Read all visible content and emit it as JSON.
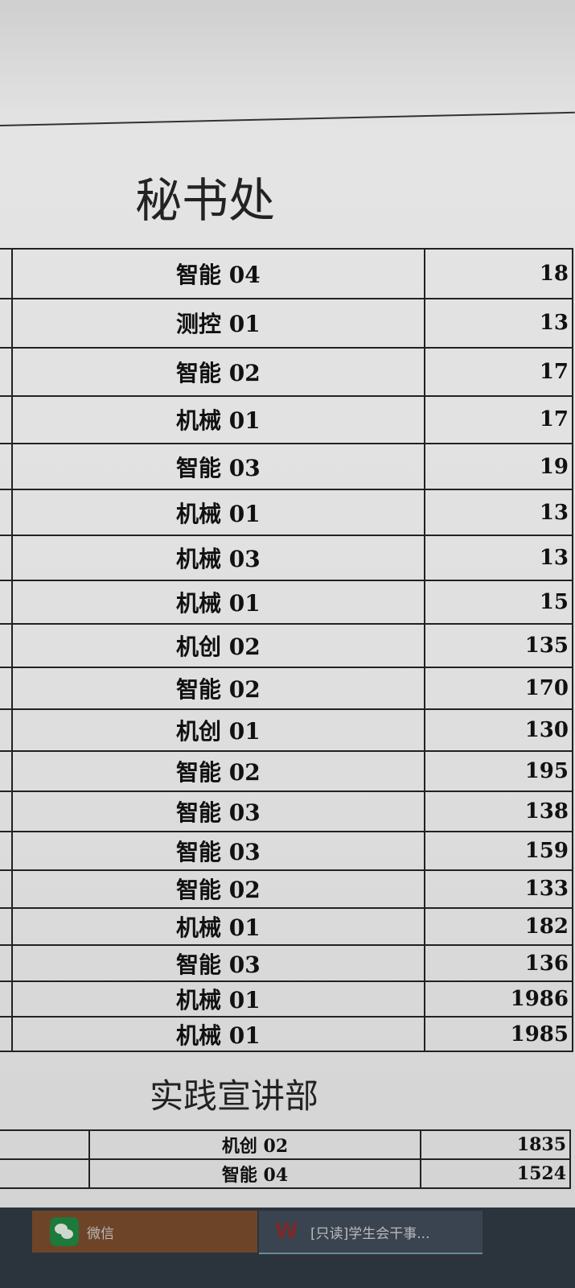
{
  "sheet": {
    "sections": [
      {
        "title": "秘书处",
        "rows": [
          {
            "class": "智能 04",
            "number": "18"
          },
          {
            "class": "测控 01",
            "number": "13"
          },
          {
            "class": "智能 02",
            "number": "17"
          },
          {
            "class": "机械 01",
            "number": "17"
          },
          {
            "class": "智能 03",
            "number": "19"
          },
          {
            "class": "机械 01",
            "number": "13"
          },
          {
            "class": "机械 03",
            "number": "13"
          },
          {
            "class": "机械 01",
            "number": "15"
          },
          {
            "class": "机创 02",
            "number": "135"
          },
          {
            "class": "智能 02",
            "number": "170"
          },
          {
            "class": "机创 01",
            "number": "130"
          },
          {
            "class": "智能 02",
            "number": "195"
          },
          {
            "class": "智能 03",
            "number": "138"
          },
          {
            "class": "智能 03",
            "number": "159"
          },
          {
            "class": "智能 02",
            "number": "133"
          },
          {
            "class": "机械 01",
            "number": "182"
          },
          {
            "class": "智能 03",
            "number": "136"
          },
          {
            "class": "机械 01",
            "number": "1986"
          },
          {
            "class": "机械 01",
            "number": "1985"
          }
        ]
      },
      {
        "title": "实践宣讲部",
        "rows": [
          {
            "class": "机创 02",
            "number": "1835"
          },
          {
            "class": "智能 04",
            "number": "1524"
          }
        ]
      }
    ]
  },
  "taskbar": {
    "items": [
      {
        "label": "微信",
        "icon": "wechat-icon",
        "color": "#6e4428"
      },
      {
        "label": "[只读]学生会干事...",
        "icon": "wps-icon",
        "color": "#3a4450"
      }
    ]
  }
}
